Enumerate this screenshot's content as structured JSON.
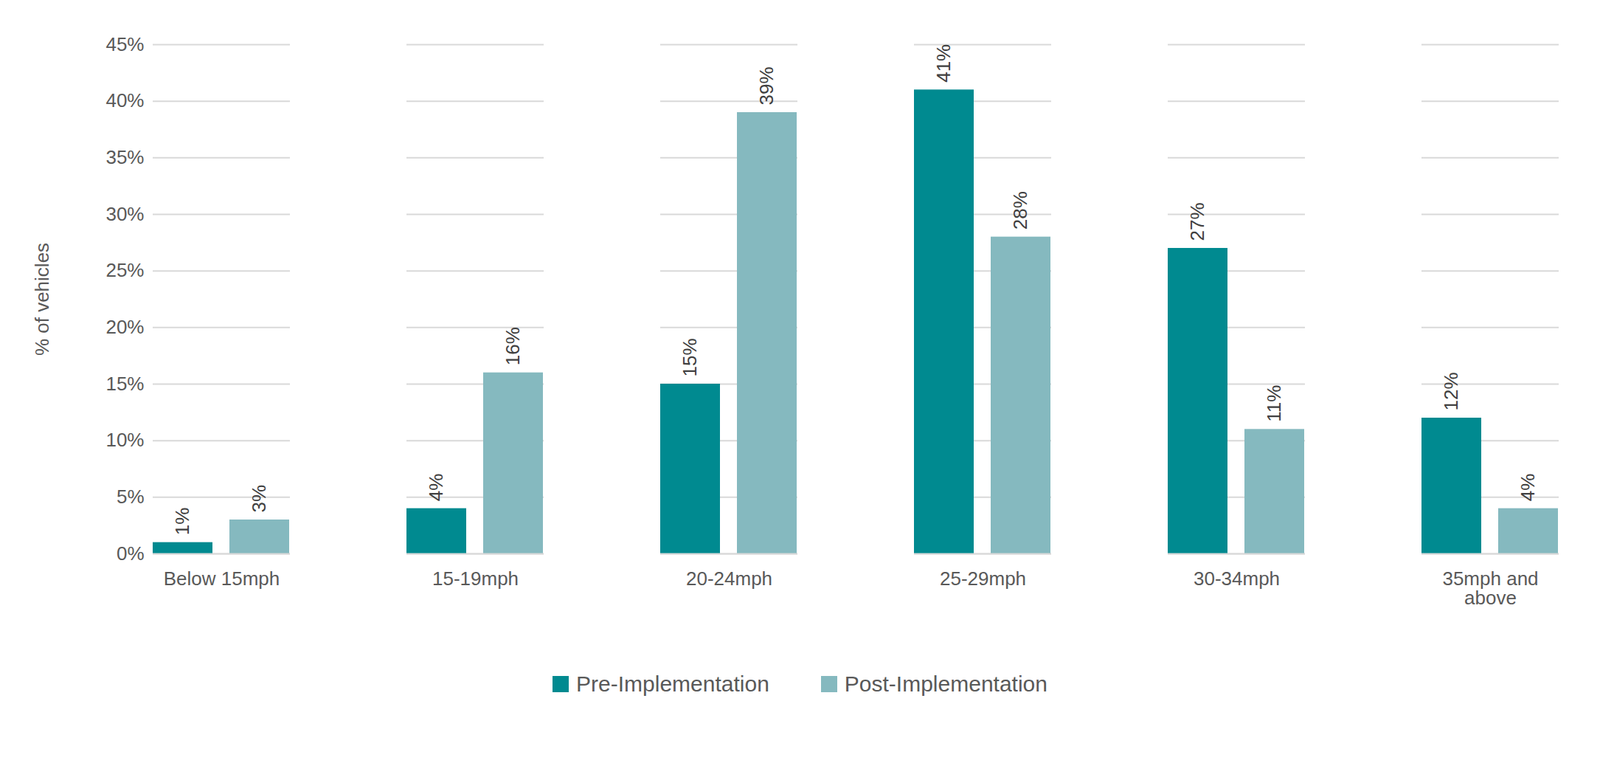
{
  "chart_data": {
    "type": "bar",
    "y_label": "% of vehicles",
    "categories": [
      "Below 15mph",
      "15-19mph",
      "20-24mph",
      "25-29mph",
      "30-34mph",
      "35mph and above"
    ],
    "series": [
      {
        "name": "Pre-Implementation",
        "color": "#008a90",
        "values": [
          1,
          4,
          15,
          41,
          27,
          12
        ],
        "value_labels": [
          "1%",
          "4%",
          "15%",
          "41%",
          "27%",
          "12%"
        ]
      },
      {
        "name": "Post-Implementation",
        "color": "#85b9bf",
        "values": [
          3,
          16,
          39,
          28,
          11,
          4
        ],
        "value_labels": [
          "3%",
          "16%",
          "39%",
          "28%",
          "11%",
          "4%"
        ]
      }
    ],
    "ylim": [
      0,
      45
    ],
    "yticks": [
      {
        "value": 0,
        "label": "0%"
      },
      {
        "value": 5,
        "label": "5%"
      },
      {
        "value": 10,
        "label": "10%"
      },
      {
        "value": 15,
        "label": "15%"
      },
      {
        "value": 20,
        "label": "20%"
      },
      {
        "value": 25,
        "label": "25%"
      },
      {
        "value": 30,
        "label": "30%"
      },
      {
        "value": 35,
        "label": "35%"
      },
      {
        "value": 40,
        "label": "40%"
      },
      {
        "value": 45,
        "label": "45%"
      }
    ],
    "grid": true,
    "data_labels": true,
    "legend": "bottom"
  }
}
